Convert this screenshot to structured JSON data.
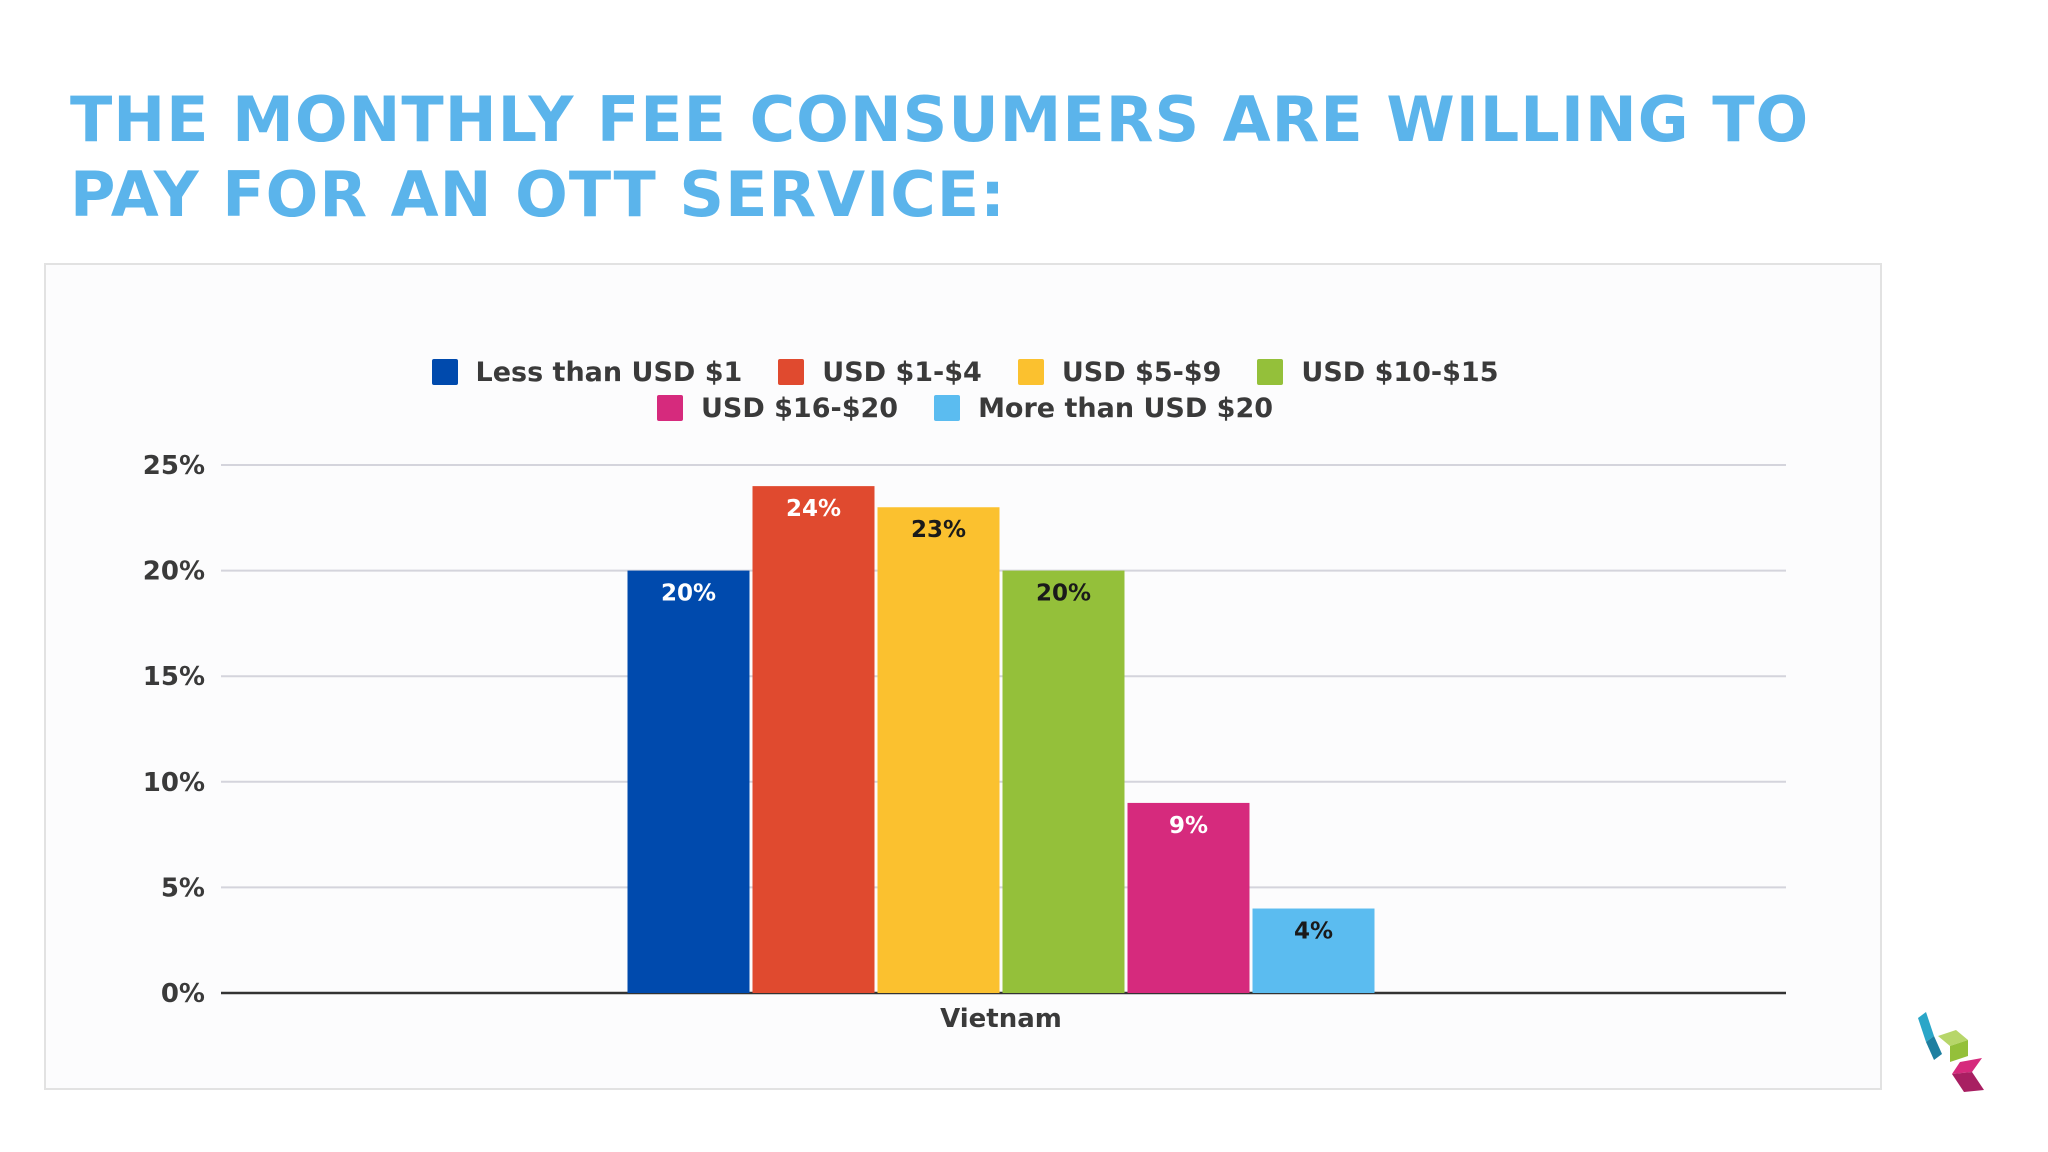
{
  "slide": {
    "title_lines": [
      "THE MONTHLY FEE CONSUMERS ARE WILLING TO",
      "PAY FOR AN OTT SERVICE:"
    ]
  },
  "chart_data": {
    "type": "bar",
    "title": "",
    "xlabel": "",
    "ylabel": "",
    "categories": [
      "Vietnam"
    ],
    "series": [
      {
        "name": "Less than USD $1",
        "values": [
          20
        ],
        "label": "20%",
        "color": "#004aad",
        "label_color": "#ffffff"
      },
      {
        "name": "USD $1-$4",
        "values": [
          24
        ],
        "label": "24%",
        "color": "#e04a2f",
        "label_color": "#ffffff"
      },
      {
        "name": "USD $5-$9",
        "values": [
          23
        ],
        "label": "23%",
        "color": "#fbc12f",
        "label_color": "#1a1a1a"
      },
      {
        "name": "USD $10-$15",
        "values": [
          20
        ],
        "label": "20%",
        "color": "#94c03a",
        "label_color": "#1a1a1a"
      },
      {
        "name": "USD $16-$20",
        "values": [
          9
        ],
        "label": "9%",
        "color": "#d62a7d",
        "label_color": "#ffffff"
      },
      {
        "name": "More than USD $20",
        "values": [
          4
        ],
        "label": "4%",
        "color": "#5bbcf0",
        "label_color": "#1a1a1a"
      }
    ],
    "ylim": [
      0,
      25
    ],
    "yticks": [
      0,
      5,
      10,
      15,
      20,
      25
    ],
    "ytick_labels": [
      "0%",
      "5%",
      "10%",
      "15%",
      "20%",
      "25%"
    ],
    "grid": true,
    "legend_position": "top"
  },
  "logo": {
    "icon": "cubes-logo-icon",
    "colors": [
      "#2aa6c8",
      "#94c03a",
      "#d62a7d"
    ]
  }
}
